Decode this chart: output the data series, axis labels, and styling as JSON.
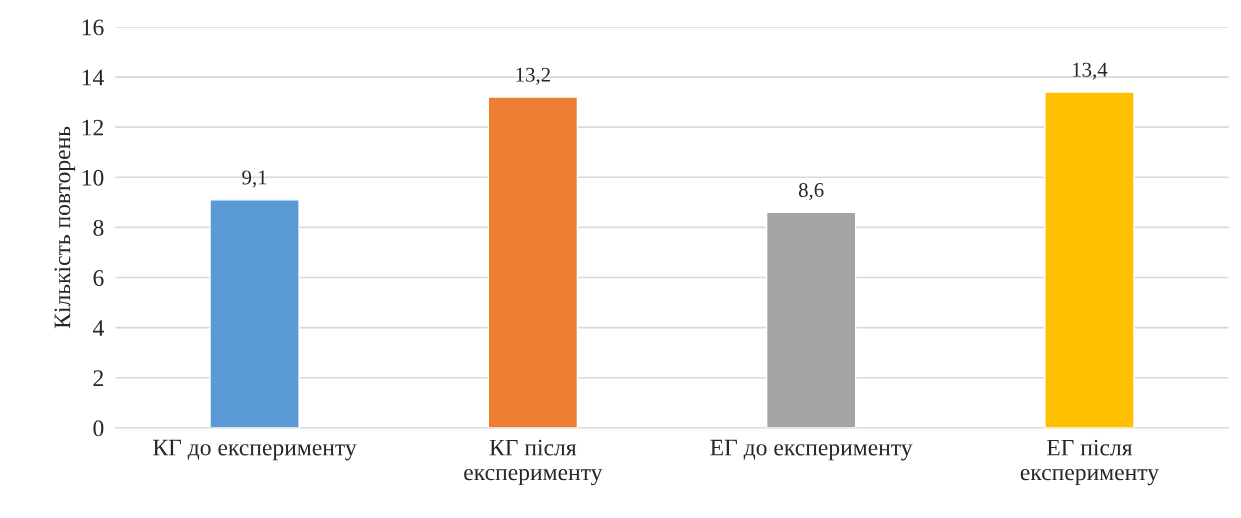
{
  "chart_data": {
    "type": "bar",
    "ylabel": "Кількість повторень",
    "categories": [
      "КГ до експерименту",
      "КГ після експерименту",
      "ЕГ до експерименту",
      "ЕГ після експерименту"
    ],
    "values": [
      9.1,
      13.2,
      8.6,
      13.4
    ],
    "colors": [
      "#5b9bd5",
      "#ed7d31",
      "#a5a5a5",
      "#ffc000"
    ],
    "value_labels": [
      "9,1",
      "13,2",
      "8,6",
      "13,4"
    ],
    "ylim": [
      0,
      16
    ],
    "yticks": [
      0,
      2,
      4,
      6,
      8,
      10,
      12,
      14,
      16
    ],
    "grid": "y"
  }
}
